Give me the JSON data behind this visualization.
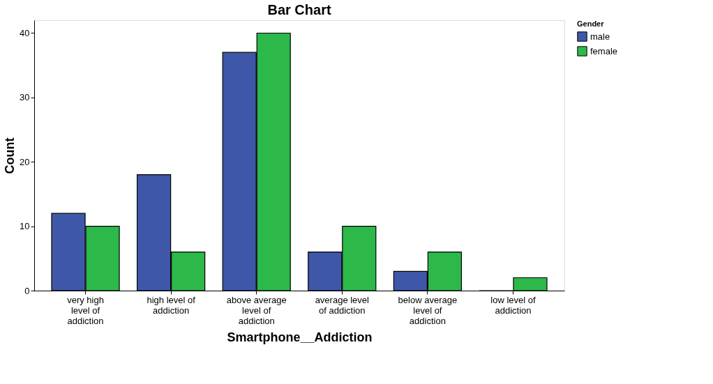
{
  "chart_data": {
    "type": "bar",
    "title": "Bar Chart",
    "xlabel": "Smartphone__Addiction",
    "ylabel": "Count",
    "legend_title": "Gender",
    "categories": [
      "very high level of addiction",
      "high level of addiction",
      "above average level of addiction",
      "average level of addiction",
      "below average level of addiction",
      "low level of addiction"
    ],
    "series": [
      {
        "name": "male",
        "color": "#3f57a8",
        "values": [
          12,
          18,
          37,
          6,
          3,
          0
        ]
      },
      {
        "name": "female",
        "color": "#2db84a",
        "values": [
          10,
          6,
          40,
          10,
          6,
          2
        ]
      }
    ],
    "ylim": [
      0,
      42
    ],
    "yticks": [
      0,
      10,
      20,
      30,
      40
    ],
    "grid": false,
    "legend": "top right"
  }
}
